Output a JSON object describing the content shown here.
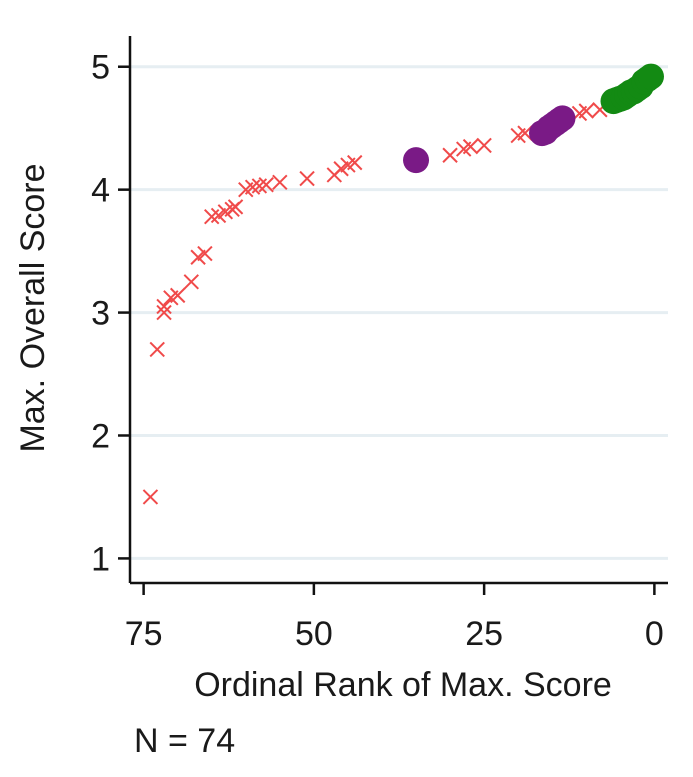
{
  "chart_data": {
    "type": "scatter",
    "title": "",
    "xlabel": "Ordinal Rank of Max. Score",
    "ylabel": "Max. Overall Score",
    "xlim": [
      77,
      -2
    ],
    "ylim": [
      0.8,
      5.25
    ],
    "x_reversed": true,
    "xticks": [
      75,
      50,
      25,
      0
    ],
    "yticks": [
      1,
      2,
      3,
      4,
      5
    ],
    "grid": true,
    "legend": "none",
    "series": [
      {
        "marker": "x",
        "color": "#f04a4a",
        "points": [
          [
            74,
            1.5
          ],
          [
            73,
            2.7
          ],
          [
            72,
            3.0
          ],
          [
            72,
            3.05
          ],
          [
            71,
            3.12
          ],
          [
            70,
            3.14
          ],
          [
            68,
            3.25
          ],
          [
            67,
            3.45
          ],
          [
            66,
            3.48
          ],
          [
            65,
            3.78
          ],
          [
            64,
            3.79
          ],
          [
            63,
            3.82
          ],
          [
            62,
            3.84
          ],
          [
            61.5,
            3.86
          ],
          [
            60,
            4.0
          ],
          [
            59,
            4.02
          ],
          [
            58,
            4.03
          ],
          [
            57,
            4.04
          ],
          [
            55,
            4.06
          ],
          [
            51,
            4.09
          ],
          [
            47,
            4.12
          ],
          [
            46,
            4.17
          ],
          [
            45,
            4.2
          ],
          [
            44,
            4.22
          ],
          [
            30,
            4.28
          ],
          [
            28,
            4.33
          ],
          [
            27,
            4.35
          ],
          [
            25,
            4.36
          ],
          [
            20,
            4.44
          ],
          [
            19,
            4.46
          ],
          [
            11,
            4.62
          ],
          [
            10,
            4.64
          ],
          [
            8,
            4.65
          ]
        ]
      },
      {
        "marker": "circle",
        "color": "#7a1a86",
        "points": [
          [
            35,
            4.24
          ],
          [
            16.5,
            4.46
          ],
          [
            16,
            4.47
          ],
          [
            15.5,
            4.5
          ],
          [
            15,
            4.52
          ],
          [
            14.5,
            4.54
          ],
          [
            14,
            4.56
          ],
          [
            13.5,
            4.58
          ]
        ]
      },
      {
        "marker": "circle",
        "color": "#138a13",
        "points": [
          [
            6,
            4.72
          ],
          [
            5.5,
            4.73
          ],
          [
            5,
            4.74
          ],
          [
            4.5,
            4.75
          ],
          [
            4,
            4.77
          ],
          [
            3.5,
            4.79
          ],
          [
            3,
            4.8
          ],
          [
            2.5,
            4.82
          ],
          [
            2,
            4.84
          ],
          [
            1.5,
            4.88
          ],
          [
            1,
            4.9
          ],
          [
            0.5,
            4.92
          ]
        ]
      }
    ]
  },
  "footnote": "N = 74"
}
